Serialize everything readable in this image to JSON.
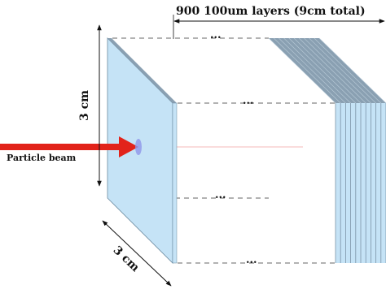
{
  "labels": {
    "stack_title": "900 100um layers (9cm total)",
    "height": "3 cm",
    "depth": "3 cm",
    "beam": "Particle beam",
    "ellipsis": "..."
  },
  "colors": {
    "layer_face": "#c5e3f6",
    "layer_edge": "#7b93a6",
    "layer_top": "#8aa0b2",
    "beam": "#e2231a",
    "beam_spot": "#8f96ea",
    "guide_line": "#333333",
    "axis_line": "#f2a0a0"
  },
  "stack": {
    "visible_slices": 10
  }
}
